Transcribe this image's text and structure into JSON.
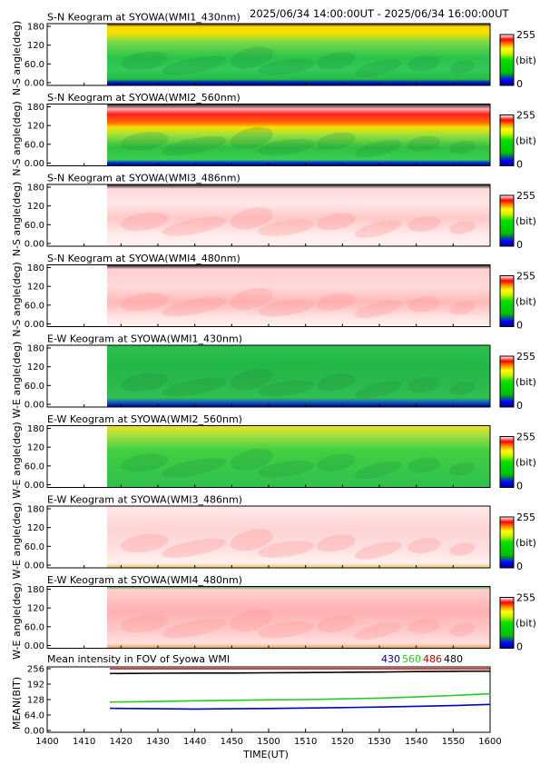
{
  "header": {
    "time_range": "2025/06/34 14:00:00UT - 2025/06/34 16:00:00UT"
  },
  "colorbar": {
    "max_label": "255",
    "unit_label": "(bit)",
    "min_label": "0"
  },
  "y_ticks": [
    "180",
    "120",
    "60.0",
    "0.00"
  ],
  "colors": {
    "frame": "#000000",
    "missing": "#ffffff",
    "blue_series": "#0000cc",
    "green_series": "#22cc22",
    "red_series": "#cc0000",
    "black_series": "#000000"
  },
  "keograms": [
    {
      "title": "S-N Keogram at SYOWA(WMI1_430nm)",
      "ylabel": "N-S angle(deg)",
      "palette": "rainbow",
      "profile": "sn430"
    },
    {
      "title": "S-N Keogram at SYOWA(WMI2_560nm)",
      "ylabel": "N-S angle(deg)",
      "palette": "rainbow",
      "profile": "sn560"
    },
    {
      "title": "S-N Keogram at SYOWA(WMI3_486nm)",
      "ylabel": "N-S angle(deg)",
      "palette": "pale",
      "profile": "sn486"
    },
    {
      "title": "S-N Keogram at SYOWA(WMI4_480nm)",
      "ylabel": "N-S angle(deg)",
      "palette": "pale",
      "profile": "sn480"
    },
    {
      "title": "E-W Keogram at SYOWA(WMI1_430nm)",
      "ylabel": "W-E angle(deg)",
      "palette": "rainbow",
      "profile": "ew430"
    },
    {
      "title": "E-W Keogram at SYOWA(WMI2_560nm)",
      "ylabel": "W-E angle(deg)",
      "palette": "rainbow",
      "profile": "ew560"
    },
    {
      "title": "E-W Keogram at SYOWA(WMI3_486nm)",
      "ylabel": "W-E angle(deg)",
      "palette": "pale",
      "profile": "ew486"
    },
    {
      "title": "E-W Keogram at SYOWA(WMI4_480nm)",
      "ylabel": "W-E angle(deg)",
      "palette": "pale",
      "profile": "ew480"
    }
  ],
  "chart_data": {
    "type": "line",
    "title": "Mean intensity in FOV of Syowa WMI",
    "xlabel": "TIME(UT)",
    "ylabel": "MEAN(BIT)",
    "x_ticks": [
      "1400",
      "1410",
      "1420",
      "1430",
      "1440",
      "1450",
      "1500",
      "1510",
      "1520",
      "1530",
      "1540",
      "1550",
      "1600"
    ],
    "y_ticks": [
      "256",
      "192",
      "128",
      "64.0",
      "0.00"
    ],
    "xlim": [
      "14:00",
      "16:00"
    ],
    "ylim": [
      0,
      256
    ],
    "x": [
      "14:17",
      "14:30",
      "14:40",
      "14:50",
      "15:00",
      "15:10",
      "15:20",
      "15:30",
      "15:40",
      "15:50",
      "16:00"
    ],
    "series": [
      {
        "name": "430",
        "color": "#0000cc",
        "values": [
          92,
          90,
          89,
          90,
          91,
          93,
          95,
          97,
          100,
          103,
          108
        ]
      },
      {
        "name": "560",
        "color": "#22cc22",
        "values": [
          118,
          120,
          123,
          125,
          127,
          128,
          131,
          134,
          139,
          145,
          152
        ]
      },
      {
        "name": "486",
        "color": "#cc0000",
        "values": [
          256,
          256,
          256,
          256,
          256,
          256,
          256,
          256,
          256,
          256,
          256
        ]
      },
      {
        "name": "480",
        "color": "#000000",
        "values": [
          236,
          237,
          238,
          238,
          239,
          240,
          241,
          242,
          244,
          245,
          246
        ]
      }
    ]
  }
}
